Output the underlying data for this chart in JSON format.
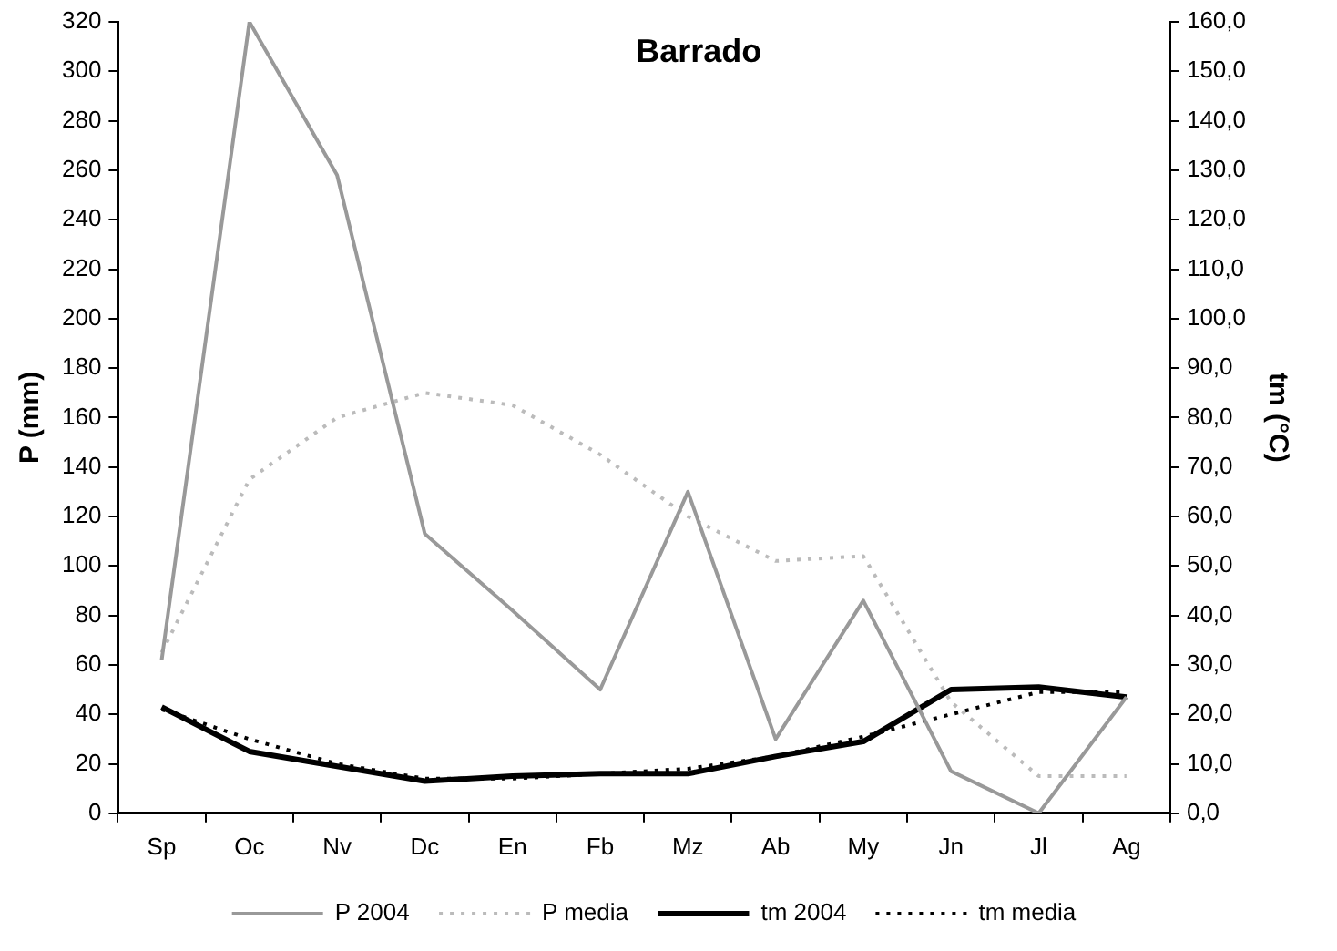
{
  "chart_data": {
    "type": "line",
    "title": "Barrado",
    "ylabel": "P (mm)",
    "y2label": "tm (°C)",
    "categories": [
      "Sp",
      "Oc",
      "Nv",
      "Dc",
      "En",
      "Fb",
      "Mz",
      "Ab",
      "My",
      "Jn",
      "Jl",
      "Ag"
    ],
    "series": [
      {
        "name": "P 2004",
        "color": "#999999",
        "line_style": "solid",
        "values": [
          62,
          320,
          258,
          113,
          82,
          50,
          130,
          30,
          86,
          17,
          0,
          47
        ]
      },
      {
        "name": "P media",
        "color": "#bbbbbb",
        "line_style": "dotted",
        "values": [
          65,
          135,
          160,
          170,
          165,
          145,
          120,
          102,
          104,
          45,
          15,
          15
        ]
      },
      {
        "name": "tm 2004",
        "color": "#000000",
        "line_style": "solid",
        "axis": "y2",
        "values": [
          21.5,
          12.5,
          9.5,
          6.5,
          7.5,
          8,
          8,
          11.5,
          14.5,
          25,
          25.5,
          23.5
        ]
      },
      {
        "name": "tm media",
        "color": "#000000",
        "line_style": "dotted",
        "axis": "y2",
        "values": [
          21,
          15,
          10,
          7,
          7,
          8,
          9,
          11.5,
          15.5,
          20,
          24.5,
          24.5
        ]
      }
    ],
    "ylim": [
      0,
      320
    ],
    "yticks": [
      0,
      20,
      40,
      60,
      80,
      100,
      120,
      140,
      160,
      180,
      200,
      220,
      240,
      260,
      280,
      300,
      320
    ],
    "y2lim": [
      0,
      160
    ],
    "y2ticks": [
      {
        "value": 0,
        "label": "0,0"
      },
      {
        "value": 10,
        "label": "10,0"
      },
      {
        "value": 20,
        "label": "20,0"
      },
      {
        "value": 30,
        "label": "30,0"
      },
      {
        "value": 40,
        "label": "40,0"
      },
      {
        "value": 50,
        "label": "50,0"
      },
      {
        "value": 60,
        "label": "60,0"
      },
      {
        "value": 70,
        "label": "70,0"
      },
      {
        "value": 80,
        "label": "80,0"
      },
      {
        "value": 90,
        "label": "90,0"
      },
      {
        "value": 100,
        "label": "100,0"
      },
      {
        "value": 110,
        "label": "110,0"
      },
      {
        "value": 120,
        "label": "120,0"
      },
      {
        "value": 130,
        "label": "130,0"
      },
      {
        "value": 140,
        "label": "140,0"
      },
      {
        "value": 150,
        "label": "150,0"
      },
      {
        "value": 160,
        "label": "160,0"
      }
    ],
    "grid": false,
    "legend": "bottom",
    "marker": "none"
  }
}
